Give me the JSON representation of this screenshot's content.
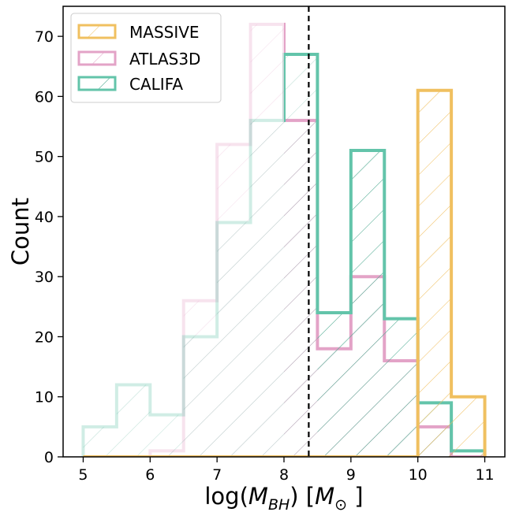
{
  "chart_data": {
    "type": "histogram",
    "title": "",
    "xlabel_prefix": "log(",
    "xlabel_var": "M",
    "xlabel_sub": "BH",
    "xlabel_mid": ") [",
    "xlabel_unit": "M",
    "xlabel_unit_sub": "⊙",
    "xlabel_suffix": " ]",
    "ylabel": "Count",
    "xlim": [
      4.7,
      11.3
    ],
    "ylim": [
      0,
      75
    ],
    "xticks": [
      5,
      6,
      7,
      8,
      9,
      10,
      11
    ],
    "xtick_labels": [
      "5",
      "6",
      "7",
      "8",
      "9",
      "10",
      "11"
    ],
    "yticks": [
      0,
      10,
      20,
      30,
      40,
      50,
      60,
      70
    ],
    "ytick_labels": [
      "0",
      "10",
      "20",
      "30",
      "40",
      "50",
      "60",
      "70"
    ],
    "bin_edges": [
      5.0,
      5.5,
      6.0,
      6.5,
      7.0,
      7.5,
      8.0,
      8.5,
      9.0,
      9.5,
      10.0,
      10.5,
      11.0
    ],
    "vline_x": 8.37,
    "legend_position": "upper-left",
    "series": [
      {
        "name": "MASSIVE",
        "color": "#f0c060",
        "counts": [
          0,
          0,
          0,
          0,
          0,
          0,
          0,
          0,
          0,
          0,
          61,
          10
        ]
      },
      {
        "name": "ATLAS3D",
        "color": "#e3a3c7",
        "counts": [
          0,
          0,
          1,
          26,
          52,
          72,
          56,
          18,
          30,
          16,
          5,
          0
        ],
        "fade_below": 8.0
      },
      {
        "name": "CALIFA",
        "color": "#63c4aa",
        "counts": [
          5,
          12,
          7,
          20,
          39,
          56,
          67,
          24,
          51,
          23,
          9,
          1
        ],
        "fade_below": 8.0,
        "fade_bins": [
          6
        ]
      }
    ]
  }
}
